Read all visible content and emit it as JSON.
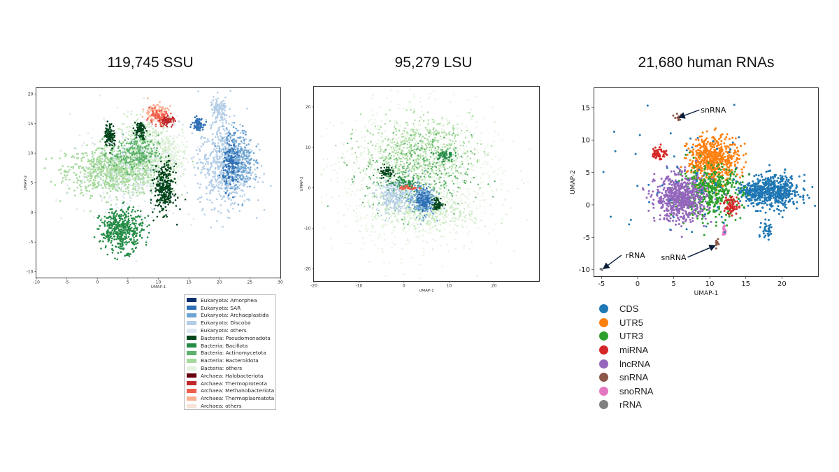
{
  "chart_data": [
    {
      "type": "scatter",
      "title": "119,745 SSU",
      "xlabel": "UMAP-1",
      "ylabel": "UMAP-2",
      "xlim": [
        -10,
        30
      ],
      "ylim": [
        -11,
        21
      ],
      "xticks": [
        -10,
        -5,
        0,
        5,
        10,
        15,
        20,
        25,
        30
      ],
      "yticks": [
        -10,
        -5,
        0,
        5,
        10,
        15,
        20
      ],
      "legend": [
        {
          "label": "Eukaryota: Amorphea",
          "color": "#08306b"
        },
        {
          "label": "Eukaryota: SAR",
          "color": "#2f6fb5"
        },
        {
          "label": "Eukaryota: Archaeplastida",
          "color": "#6ea4d2"
        },
        {
          "label": "Eukaryota: Discoba",
          "color": "#b3cde6"
        },
        {
          "label": "Eukaryota: others",
          "color": "#dce7f3"
        },
        {
          "label": "Bacteria: Pseudomonadota",
          "color": "#00441b"
        },
        {
          "label": "Bacteria: Bacillota",
          "color": "#238b45"
        },
        {
          "label": "Bacteria: Actinomycetota",
          "color": "#5cb16b"
        },
        {
          "label": "Bacteria: Bacteroidota",
          "color": "#a6d99d"
        },
        {
          "label": "Bacteria: others",
          "color": "#e3f3de"
        },
        {
          "label": "Archaea: Halobacteriota",
          "color": "#67000d"
        },
        {
          "label": "Archaea: Thermoproteota",
          "color": "#c0282c"
        },
        {
          "label": "Archaea: Methanobacteriota",
          "color": "#ef5f4c"
        },
        {
          "label": "Archaea: Thermoplasmatota",
          "color": "#fcae91"
        },
        {
          "label": "Archaea: others",
          "color": "#f6e3d8"
        }
      ],
      "clusters": [
        {
          "cx": 3,
          "cy": 7,
          "rx": 8,
          "ry": 4,
          "n": 900,
          "color": "#a6d99d"
        },
        {
          "cx": 8,
          "cy": 11,
          "rx": 4.5,
          "ry": 5,
          "n": 350,
          "color": "#c7e9c0"
        },
        {
          "cx": 12,
          "cy": 9,
          "rx": 2.5,
          "ry": 5,
          "n": 220,
          "color": "#e3f3de"
        },
        {
          "cx": 6,
          "cy": 10,
          "rx": 4,
          "ry": 3,
          "n": 250,
          "color": "#5cb16b"
        },
        {
          "cx": 21,
          "cy": 8,
          "rx": 4.5,
          "ry": 7,
          "n": 700,
          "color": "#b3cde6"
        },
        {
          "cx": 23,
          "cy": 9,
          "rx": 2.5,
          "ry": 5,
          "n": 300,
          "color": "#6ea4d2"
        },
        {
          "cx": 22,
          "cy": 8,
          "rx": 1.4,
          "ry": 4,
          "n": 120,
          "color": "#2f6fb5"
        },
        {
          "cx": 20,
          "cy": 17,
          "rx": 1.5,
          "ry": 2.5,
          "n": 120,
          "color": "#b3cde6"
        },
        {
          "cx": 16.5,
          "cy": 15,
          "rx": 0.9,
          "ry": 1,
          "n": 80,
          "color": "#2f6fb5"
        },
        {
          "cx": 11,
          "cy": 4,
          "rx": 1.6,
          "ry": 4,
          "n": 320,
          "color": "#00441b"
        },
        {
          "cx": 4,
          "cy": -3,
          "rx": 3.5,
          "ry": 3.5,
          "n": 450,
          "color": "#238b45"
        },
        {
          "cx": 2,
          "cy": 13,
          "rx": 0.8,
          "ry": 2,
          "n": 110,
          "color": "#00441b"
        },
        {
          "cx": 7,
          "cy": 14,
          "rx": 0.9,
          "ry": 1.5,
          "n": 80,
          "color": "#00441b"
        },
        {
          "cx": 9.5,
          "cy": 17,
          "rx": 2,
          "ry": 1.5,
          "n": 90,
          "color": "#fcae91"
        },
        {
          "cx": 10,
          "cy": 16,
          "rx": 2,
          "ry": 1.2,
          "n": 90,
          "color": "#ef5f4c"
        },
        {
          "cx": 11.5,
          "cy": 15.5,
          "rx": 1.2,
          "ry": 0.8,
          "n": 60,
          "color": "#c0282c"
        },
        {
          "cx": 6,
          "cy": 7,
          "rx": 10,
          "ry": 9,
          "n": 250,
          "color": "#dce7f3"
        }
      ]
    },
    {
      "type": "scatter",
      "title": "95,279 LSU",
      "xlabel": "UMAP-1",
      "ylabel": "UMAP-2",
      "xlim": [
        -20,
        30
      ],
      "ylim": [
        -23,
        25
      ],
      "xticks": [
        -20,
        -10,
        0,
        10,
        20
      ],
      "yticks": [
        -20,
        -10,
        0,
        10,
        20
      ],
      "clusters": [
        {
          "cx": 3,
          "cy": 2,
          "rx": 18,
          "ry": 17,
          "n": 1300,
          "color": "#e3f3de"
        },
        {
          "cx": 3,
          "cy": 9,
          "rx": 12,
          "ry": 8,
          "n": 600,
          "color": "#a6d99d"
        },
        {
          "cx": 5,
          "cy": -6,
          "rx": 11,
          "ry": 4,
          "n": 300,
          "color": "#c7e9c0"
        },
        {
          "cx": 3,
          "cy": 3,
          "rx": 12,
          "ry": 10,
          "n": 250,
          "color": "#5cb16b"
        },
        {
          "cx": 0,
          "cy": 1,
          "rx": 4,
          "ry": 2,
          "n": 120,
          "color": "#238b45"
        },
        {
          "cx": -2,
          "cy": -2,
          "rx": 4,
          "ry": 4,
          "n": 250,
          "color": "#b3cde6"
        },
        {
          "cx": 4,
          "cy": -3,
          "rx": 3,
          "ry": 4,
          "n": 250,
          "color": "#6ea4d2"
        },
        {
          "cx": 4.5,
          "cy": -3,
          "rx": 1.6,
          "ry": 2.5,
          "n": 120,
          "color": "#2f6fb5"
        },
        {
          "cx": 7.5,
          "cy": -4,
          "rx": 1.3,
          "ry": 1.5,
          "n": 60,
          "color": "#00441b"
        },
        {
          "cx": -4,
          "cy": 4,
          "rx": 1.5,
          "ry": 1.5,
          "n": 60,
          "color": "#00441b"
        },
        {
          "cx": 9,
          "cy": 8,
          "rx": 2,
          "ry": 1.5,
          "n": 60,
          "color": "#238b45"
        },
        {
          "cx": 1,
          "cy": 0,
          "rx": 2,
          "ry": 0.6,
          "n": 40,
          "color": "#ef5f4c"
        }
      ]
    },
    {
      "type": "scatter",
      "title": "21,680 human RNAs",
      "xlabel": "UMAP-1",
      "ylabel": "UMAP-2",
      "xlim": [
        -6,
        25
      ],
      "ylim": [
        -11,
        18
      ],
      "xticks": [
        -5,
        0,
        5,
        10,
        15,
        20
      ],
      "yticks": [
        -10,
        -5,
        0,
        5,
        10,
        15
      ],
      "legend": [
        {
          "label": "CDS",
          "color": "#1f77b4"
        },
        {
          "label": "UTR5",
          "color": "#ff7f0e"
        },
        {
          "label": "UTR3",
          "color": "#2ca02c"
        },
        {
          "label": "miRNA",
          "color": "#d62728"
        },
        {
          "label": "lncRNA",
          "color": "#9467bd"
        },
        {
          "label": "snRNA",
          "color": "#8c564b"
        },
        {
          "label": "snoRNA",
          "color": "#e377c2"
        },
        {
          "label": "rRNA",
          "color": "#7f7f7f"
        }
      ],
      "annotations": [
        {
          "text": "snRNA",
          "text_x": 10.5,
          "text_y": 14.2,
          "arrow_x": 5.8,
          "arrow_y": 13.5
        },
        {
          "text": "snRNA",
          "text_x": 5,
          "text_y": -8.5,
          "arrow_x": 10.7,
          "arrow_y": -6.3
        },
        {
          "text": "rRNA",
          "text_x": -0.3,
          "text_y": -8.2,
          "arrow_x": -4.7,
          "arrow_y": -9.8
        }
      ],
      "clusters": [
        {
          "cx": 19,
          "cy": 2,
          "rx": 3.5,
          "ry": 2.5,
          "n": 500,
          "color": "#1f77b4"
        },
        {
          "cx": 16,
          "cy": 2,
          "rx": 2,
          "ry": 1.5,
          "n": 150,
          "color": "#1f77b4"
        },
        {
          "cx": 18,
          "cy": -4,
          "rx": 0.8,
          "ry": 1.5,
          "n": 40,
          "color": "#1f77b4"
        },
        {
          "cx": 10.5,
          "cy": 7,
          "rx": 3.5,
          "ry": 3.5,
          "n": 550,
          "color": "#ff7f0e"
        },
        {
          "cx": 10,
          "cy": 2,
          "rx": 4.5,
          "ry": 4,
          "n": 450,
          "color": "#2ca02c"
        },
        {
          "cx": 6,
          "cy": 1,
          "rx": 3.5,
          "ry": 3.5,
          "n": 650,
          "color": "#9467bd"
        },
        {
          "cx": 13,
          "cy": 0,
          "rx": 1,
          "ry": 1.5,
          "n": 60,
          "color": "#d62728"
        },
        {
          "cx": 3,
          "cy": 8,
          "rx": 1,
          "ry": 1,
          "n": 60,
          "color": "#d62728"
        },
        {
          "cx": 12,
          "cy": -4,
          "rx": 0.3,
          "ry": 0.8,
          "n": 25,
          "color": "#e377c2"
        },
        {
          "cx": 5.7,
          "cy": 13.4,
          "rx": 0.5,
          "ry": 0.6,
          "n": 12,
          "color": "#8c564b"
        },
        {
          "cx": 11,
          "cy": -6,
          "rx": 0.2,
          "ry": 0.6,
          "n": 10,
          "color": "#8c564b"
        },
        {
          "cx": -5,
          "cy": -10,
          "rx": 0.2,
          "ry": 0.2,
          "n": 6,
          "color": "#7f7f7f"
        },
        {
          "cx": 8,
          "cy": 3,
          "rx": 12,
          "ry": 10,
          "n": 60,
          "color": "#1f77b4"
        }
      ]
    }
  ]
}
